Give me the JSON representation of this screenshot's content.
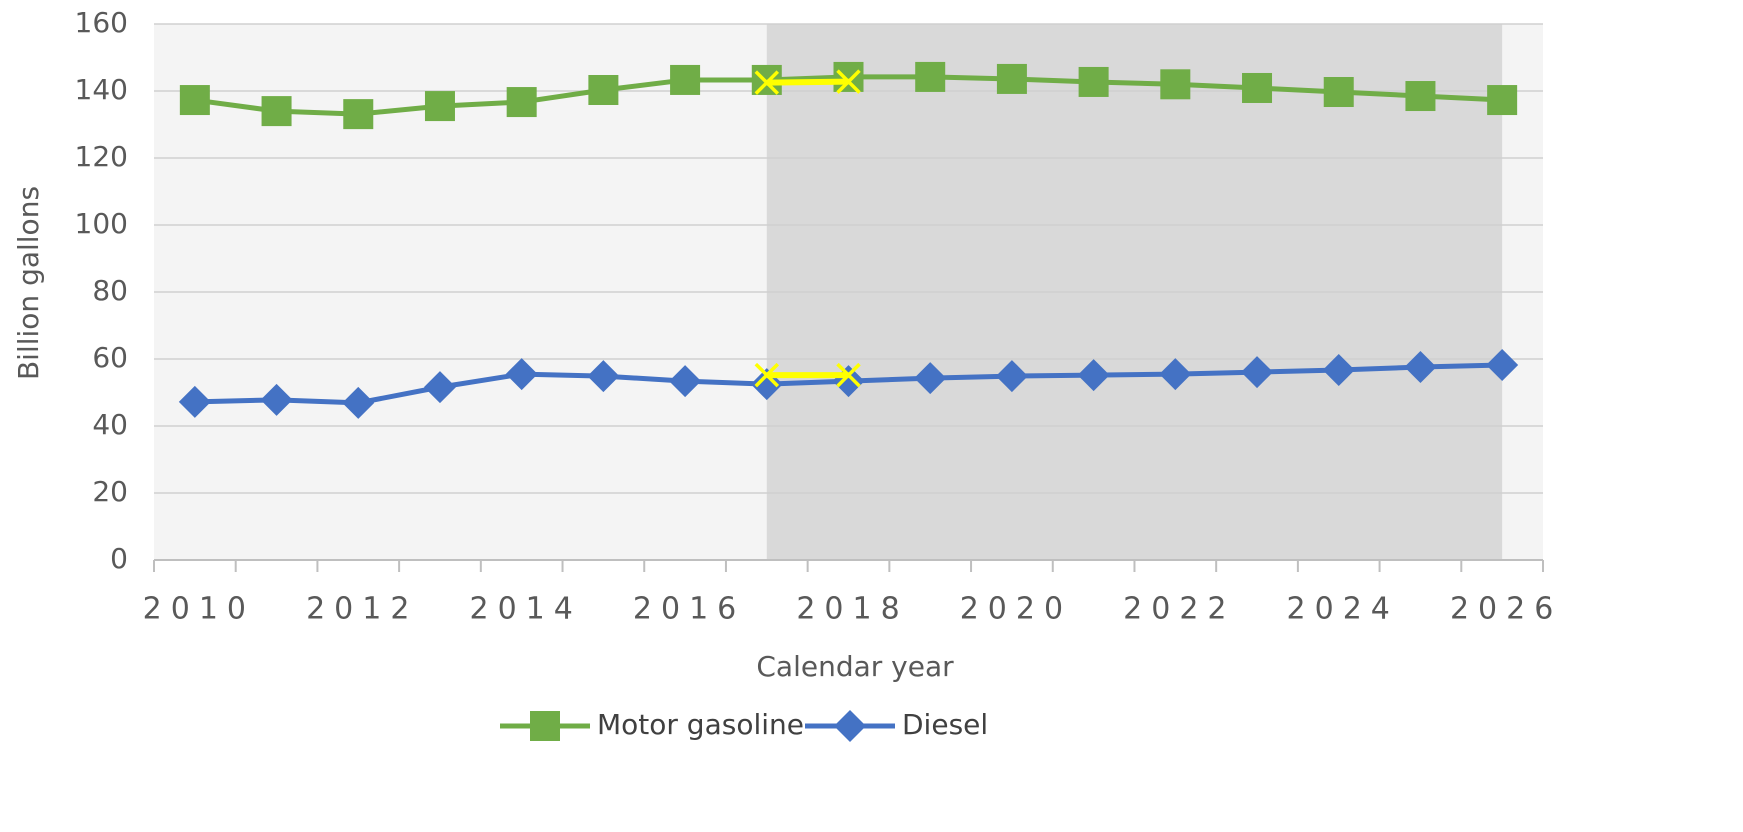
{
  "chart_data": {
    "type": "line",
    "y_label": "Billion gallons",
    "x_label": "Calendar year",
    "categories": [
      "2010",
      null,
      "2012",
      null,
      "2014",
      null,
      "2016",
      null,
      "2018",
      null,
      "2020",
      null,
      "2022",
      null,
      "2024",
      null,
      "2026"
    ],
    "series": [
      {
        "name": "Motor gasoline",
        "color": "#70ad47",
        "marker": "square",
        "values": [
          137.3,
          134.0,
          133.1,
          135.5,
          136.7,
          140.3,
          143.3,
          143.3,
          144.2,
          144.2,
          143.6,
          142.7,
          142.0,
          140.9,
          139.7,
          138.5,
          137.3
        ]
      },
      {
        "name": "Diesel",
        "color": "#4472c4",
        "marker": "diamond",
        "values": [
          47.2,
          47.8,
          46.9,
          51.6,
          55.5,
          54.9,
          53.4,
          52.5,
          53.4,
          54.3,
          54.9,
          55.2,
          55.5,
          56.1,
          56.7,
          57.6,
          58.2
        ]
      }
    ],
    "overlay_series": [
      {
        "color": "#ffff00",
        "marker": "x",
        "values": [
          null,
          null,
          null,
          null,
          null,
          null,
          null,
          142.5,
          142.8,
          null,
          null,
          null,
          null,
          null,
          null,
          null,
          null
        ]
      },
      {
        "color": "#ffff00",
        "marker": "x",
        "values": [
          null,
          null,
          null,
          null,
          null,
          null,
          null,
          55.2,
          55.2,
          null,
          null,
          null,
          null,
          null,
          null,
          null,
          null
        ]
      }
    ],
    "shaded_range": [
      7,
      16
    ],
    "ylim": [
      0,
      160
    ],
    "yticks": [
      0,
      20,
      40,
      60,
      80,
      100,
      120,
      140,
      160
    ],
    "grid": true,
    "legend": "bottom"
  }
}
